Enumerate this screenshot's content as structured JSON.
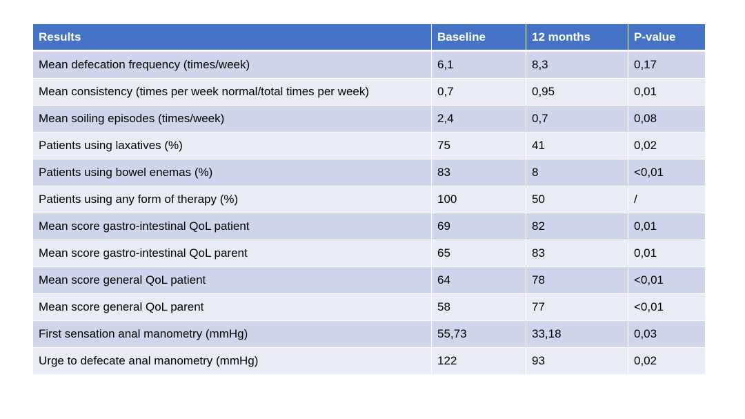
{
  "table": {
    "headers": [
      "Results",
      "Baseline",
      "12 months",
      "P-value"
    ],
    "rows": [
      [
        "Mean defecation frequency (times/week)",
        "6,1",
        "8,3",
        "0,17"
      ],
      [
        "Mean consistency (times per week normal/total times per week)",
        "0,7",
        "0,95",
        "0,01"
      ],
      [
        "Mean soiling episodes (times/week)",
        "2,4",
        "0,7",
        "0,08"
      ],
      [
        "Patients using laxatives (%)",
        "75",
        "41",
        "0,02"
      ],
      [
        "Patients using bowel enemas (%)",
        "83",
        "8",
        "<0,01"
      ],
      [
        "Patients using any form of therapy (%)",
        "100",
        "50",
        "/"
      ],
      [
        "Mean score gastro-intestinal QoL patient",
        "69",
        "82",
        "0,01"
      ],
      [
        "Mean score gastro-intestinal QoL parent",
        "65",
        "83",
        "0,01"
      ],
      [
        "Mean score general QoL patient",
        "64",
        "78",
        "<0,01"
      ],
      [
        "Mean score general QoL parent",
        "58",
        "77",
        "<0,01"
      ],
      [
        "First sensation anal manometry (mmHg)",
        "55,73",
        "33,18",
        "0,03"
      ],
      [
        "Urge to defecate anal manometry (mmHg)",
        "122",
        "93",
        "0,02"
      ]
    ]
  },
  "colors": {
    "header_bg": "#4472c4",
    "row_odd_bg": "#cfd5ea",
    "row_even_bg": "#e9ebf5"
  }
}
